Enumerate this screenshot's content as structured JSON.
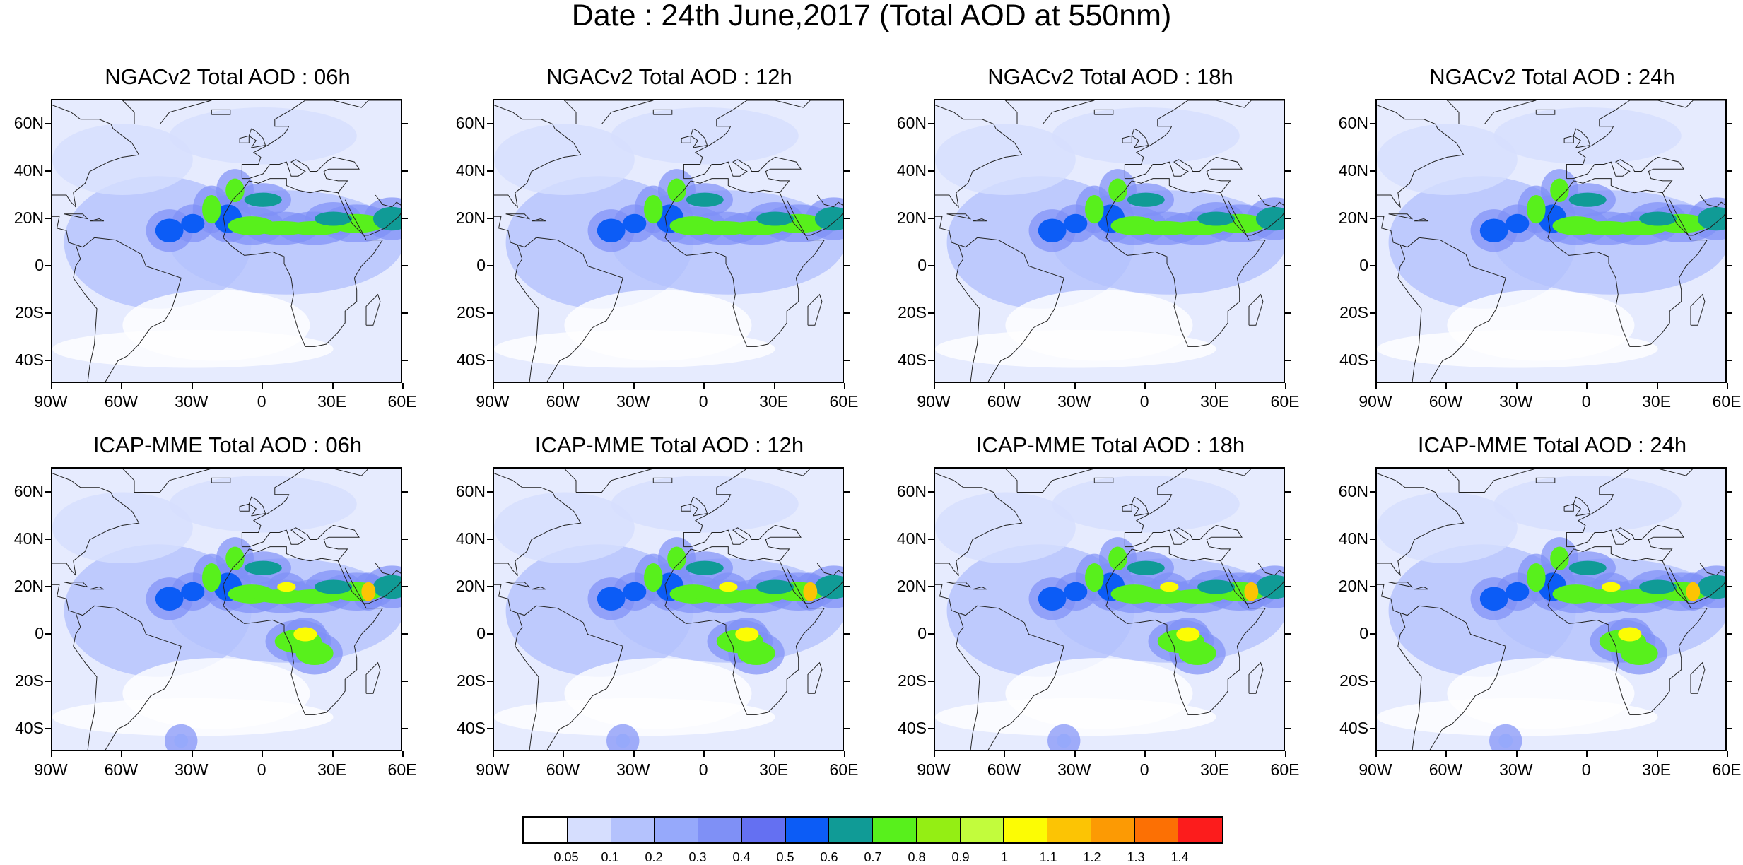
{
  "title": "Date : 24th June,2017 (Total AOD at 550nm)",
  "lat_labels": [
    "60N",
    "40N",
    "20N",
    "0",
    "20S",
    "40S"
  ],
  "lon_labels": [
    "90W",
    "60W",
    "30W",
    "0",
    "30E",
    "60E"
  ],
  "panels": [
    {
      "title": "NGACv2 Total AOD : 06h",
      "model": "NGACv2",
      "lead": "06h"
    },
    {
      "title": "NGACv2 Total AOD : 12h",
      "model": "NGACv2",
      "lead": "12h"
    },
    {
      "title": "NGACv2 Total AOD : 18h",
      "model": "NGACv2",
      "lead": "18h"
    },
    {
      "title": "NGACv2 Total AOD : 24h",
      "model": "NGACv2",
      "lead": "24h"
    },
    {
      "title": "ICAP-MME Total AOD : 06h",
      "model": "ICAP-MME",
      "lead": "06h"
    },
    {
      "title": "ICAP-MME Total AOD : 12h",
      "model": "ICAP-MME",
      "lead": "12h"
    },
    {
      "title": "ICAP-MME Total AOD : 18h",
      "model": "ICAP-MME",
      "lead": "18h"
    },
    {
      "title": "ICAP-MME Total AOD : 24h",
      "model": "ICAP-MME",
      "lead": "24h"
    }
  ],
  "colorbar": {
    "labels": [
      "0.05",
      "0.1",
      "0.2",
      "0.3",
      "0.4",
      "0.5",
      "0.6",
      "0.7",
      "0.8",
      "0.9",
      "1",
      "1.1",
      "1.2",
      "1.3",
      "1.4"
    ],
    "colors": [
      "#ffffff",
      "#d6defe",
      "#b4c2fd",
      "#96a9fb",
      "#7f90f6",
      "#6470f2",
      "#0c5cf6",
      "#109b96",
      "#58f01c",
      "#94ee14",
      "#c2fc3c",
      "#fcfc04",
      "#fcc404",
      "#fc9a04",
      "#fc7004",
      "#fc1c1c"
    ]
  },
  "map": {
    "lon_range": [
      -90,
      60
    ],
    "lat_range": [
      -50,
      70
    ],
    "ocean_color": "#e6ebfe",
    "land_color": "#ffffff"
  }
}
